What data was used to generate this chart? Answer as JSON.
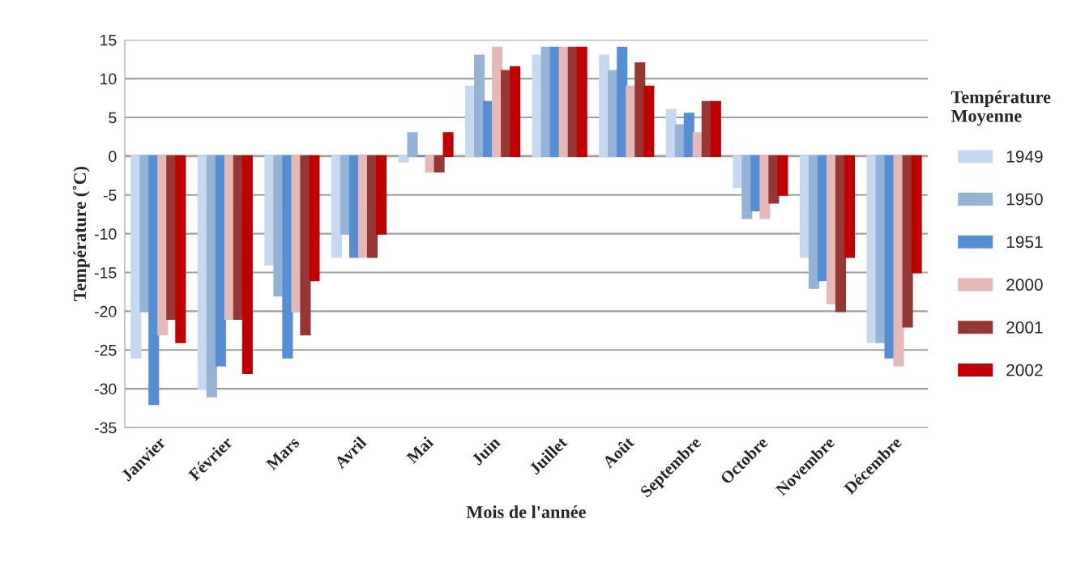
{
  "chart_data": {
    "type": "bar",
    "xlabel": "Mois de l'année",
    "ylabel": "Température (˚C)",
    "legend_title": "Température Moyenne",
    "categories": [
      "Janvier",
      "Février",
      "Mars",
      "Avril",
      "Mai",
      "Juin",
      "Juillet",
      "Août",
      "Septembre",
      "Octobre",
      "Novembre",
      "Décembre"
    ],
    "series": [
      {
        "name": "1949",
        "color": "#c6d9f1",
        "values": [
          -26,
          -30,
          -14,
          -13,
          -0.7,
          9,
          13,
          13,
          6,
          -4,
          -13,
          -24
        ]
      },
      {
        "name": "1950",
        "color": "#95b3d7",
        "values": [
          -20,
          -31,
          -18,
          -10,
          3,
          13,
          14,
          11,
          4,
          -8,
          -17,
          -24
        ]
      },
      {
        "name": "1951",
        "color": "#558ed5",
        "values": [
          -32,
          -27,
          -26,
          -13,
          0,
          7,
          14,
          14,
          5.5,
          -7,
          -16,
          -26
        ]
      },
      {
        "name": "2000",
        "color": "#e6b9b8",
        "values": [
          -23,
          -21,
          -20,
          -13,
          -2,
          14,
          14,
          9,
          3,
          -8,
          -19,
          -27
        ]
      },
      {
        "name": "2001",
        "color": "#953735",
        "values": [
          -21,
          -21,
          -23,
          -13,
          -2,
          11,
          14,
          12,
          7,
          -6,
          -20,
          -22
        ]
      },
      {
        "name": "2002",
        "color": "#c00000",
        "values": [
          -24,
          -28,
          -16,
          -10,
          3,
          11.5,
          14,
          9,
          7,
          -5,
          -13,
          -15
        ]
      }
    ],
    "ylim": [
      -35,
      15
    ],
    "yticks": [
      -35,
      -30,
      -25,
      -20,
      -15,
      -10,
      -5,
      0,
      5,
      10,
      15
    ],
    "grid": "y",
    "legend": "right"
  }
}
